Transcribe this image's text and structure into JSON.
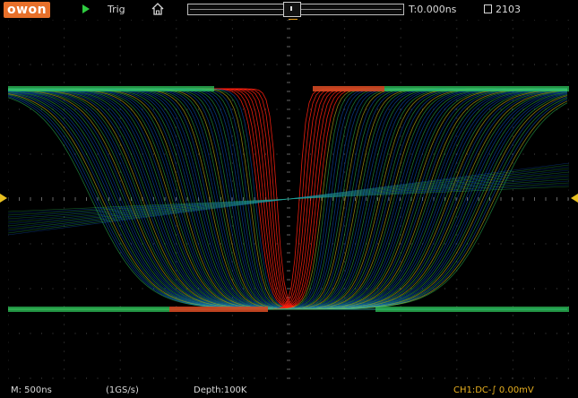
{
  "topbar": {
    "logo": "owon",
    "run_state_icon": "play-icon",
    "trig_label": "Trig",
    "home_icon": "home-icon",
    "trigger_time": "T:0.000ns",
    "memory_icon": "memory-icon",
    "memory_count": "2103"
  },
  "bottombar": {
    "timebase": "M: 500ns",
    "sample_rate": "(1GS/s)",
    "depth": "Depth:100K",
    "trigger_source": "CH1:DC-∫ 0.00mV"
  },
  "colors": {
    "background": "#000000",
    "grid": "#4a4a4a",
    "ch1_marker": "#e8c020",
    "persistence_hot": "#ff2010",
    "persistence_warm": "#f0e020",
    "persistence_mid": "#30d060",
    "persistence_cool": "#1060e0"
  }
}
